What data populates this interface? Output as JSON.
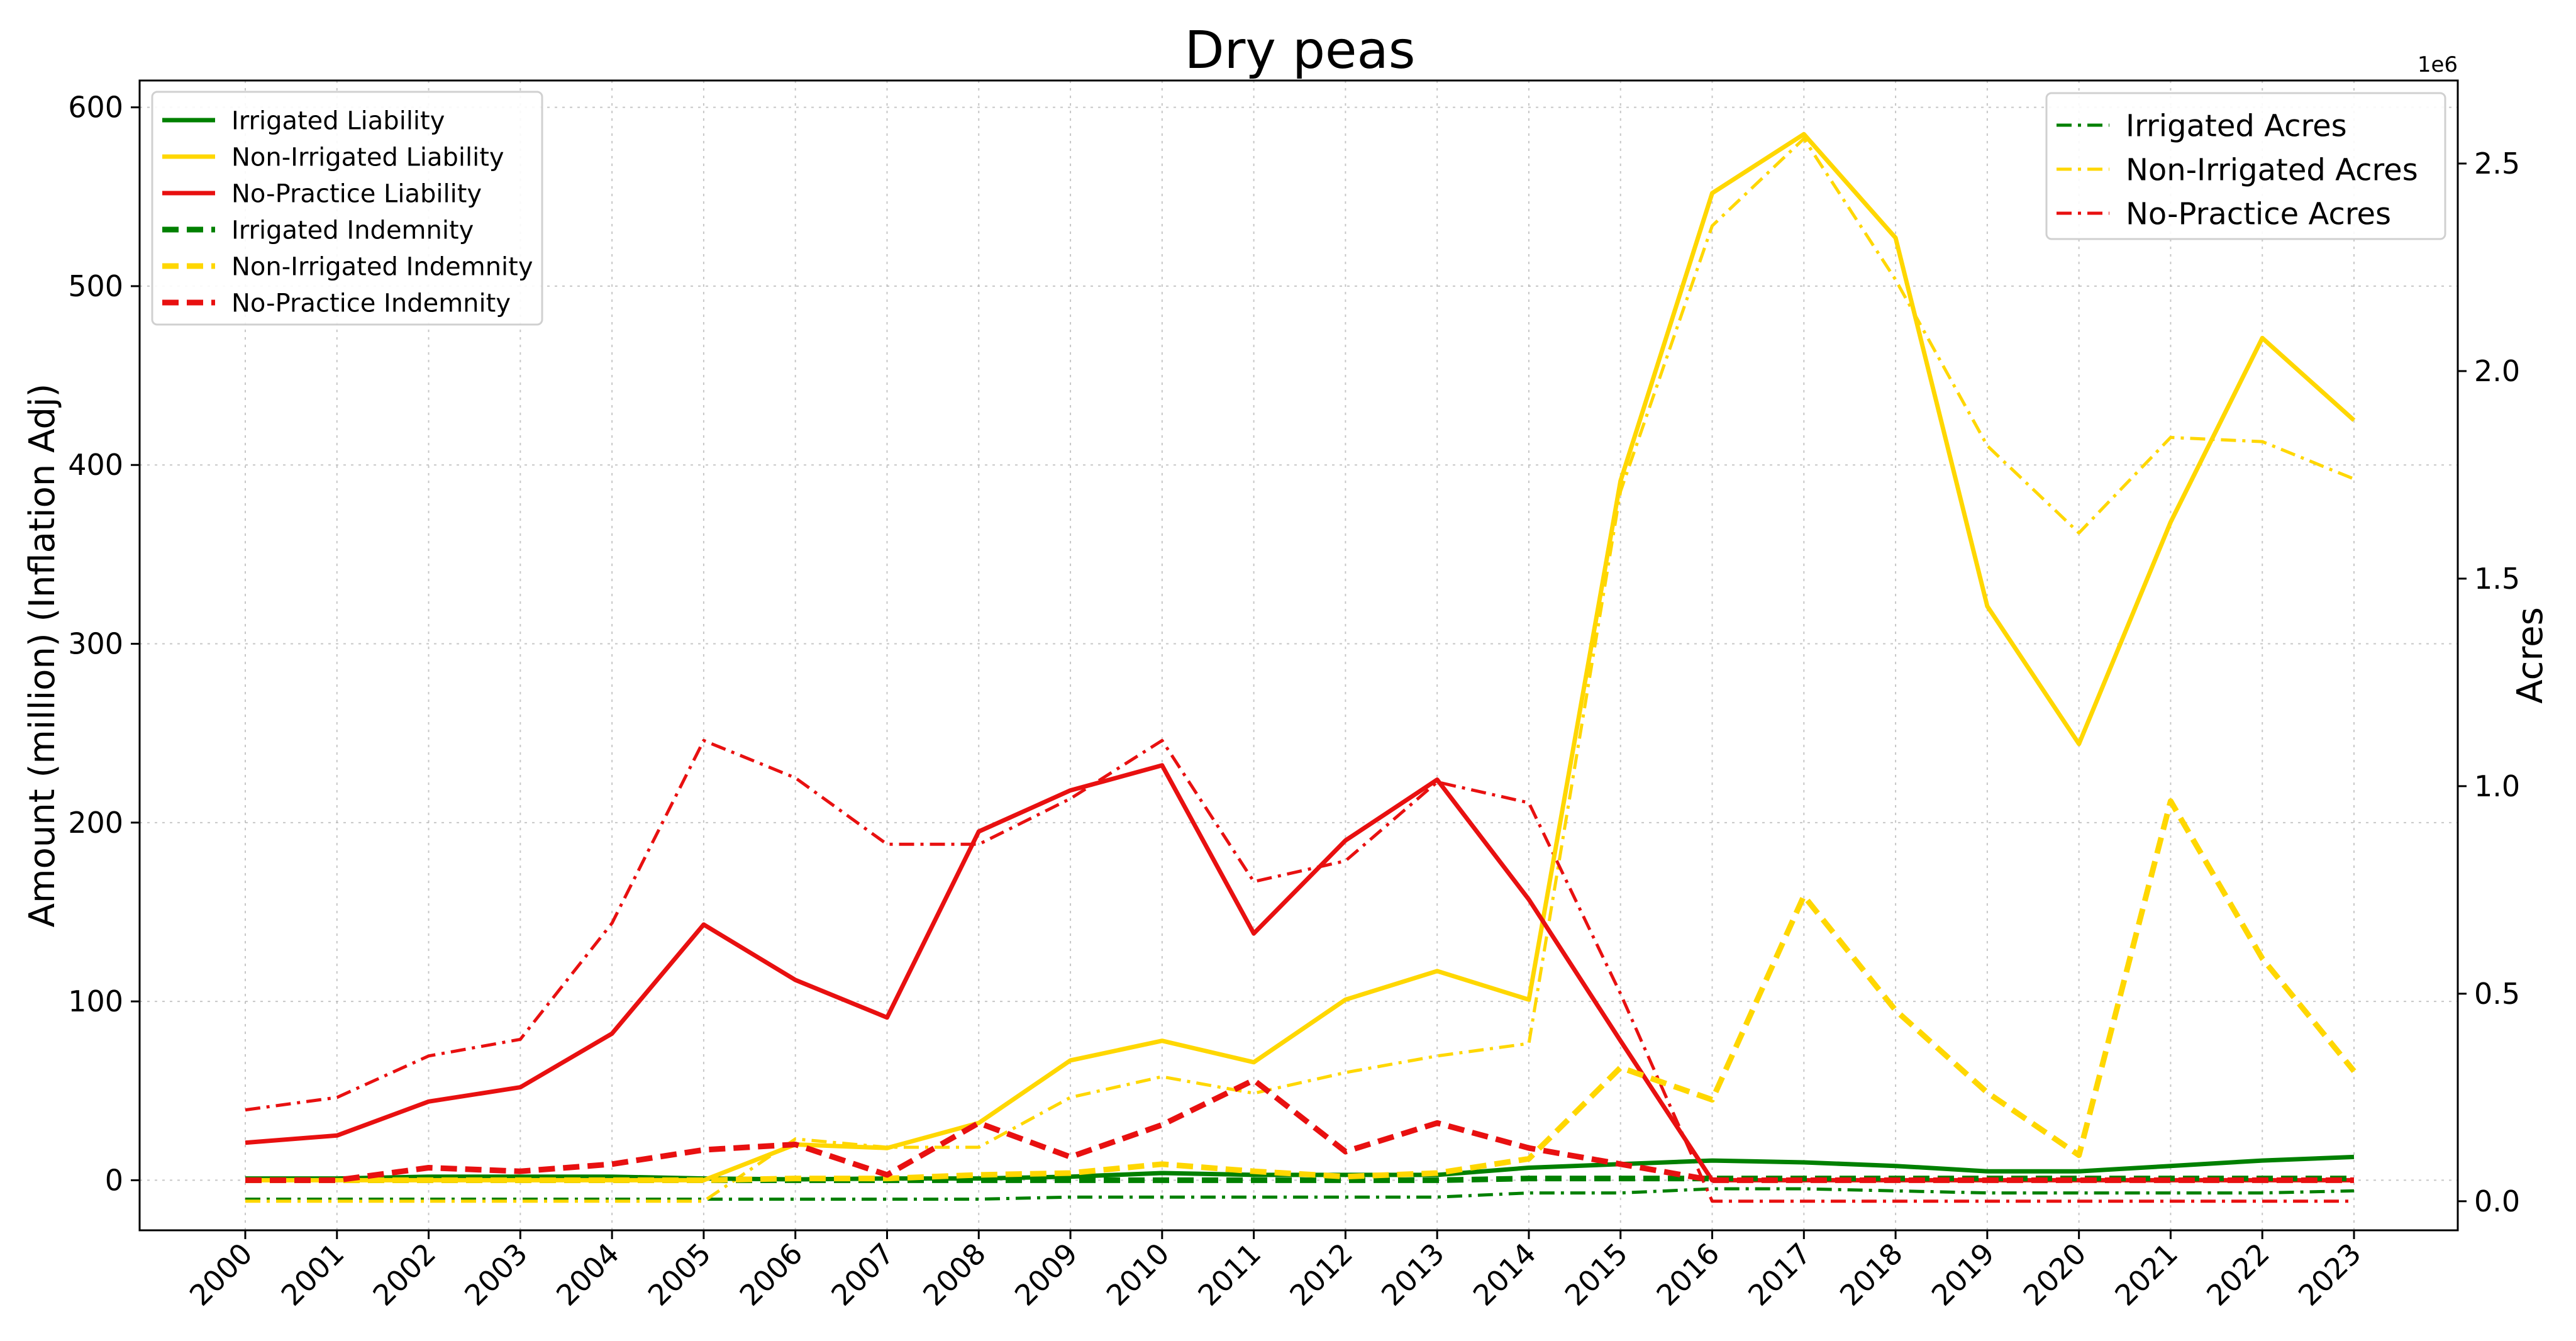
{
  "chart_data": {
    "type": "line",
    "title": "Dry peas",
    "xlabel": "",
    "ylabel_left": "Amount (million) (Inflation Adj)",
    "ylabel_right": "Acres",
    "right_axis_offset_label": "1e6",
    "ylim_left": [
      -28,
      615
    ],
    "ylim_right": [
      -0.07,
      2.7
    ],
    "grid": true,
    "x": [
      "2000",
      "2001",
      "2002",
      "2003",
      "2004",
      "2005",
      "2006",
      "2007",
      "2008",
      "2009",
      "2010",
      "2011",
      "2012",
      "2013",
      "2014",
      "2015",
      "2016",
      "2017",
      "2018",
      "2019",
      "2020",
      "2021",
      "2022",
      "2023"
    ],
    "y_ticks_left": [
      0,
      100,
      200,
      300,
      400,
      500,
      600
    ],
    "y_ticks_right": [
      0.0,
      0.5,
      1.0,
      1.5,
      2.0,
      2.5
    ],
    "legend_left_position": "upper-left",
    "legend_right_position": "upper-right",
    "colors": {
      "irrigated": "#008000",
      "non_irrigated": "#FFD700",
      "no_practice": "#E81010"
    },
    "series_left": [
      {
        "name": "Irrigated Liability",
        "color": "#008000",
        "style": "solid",
        "values": [
          1,
          1,
          2,
          2,
          2,
          1,
          0.5,
          1,
          1,
          2,
          4,
          3,
          3,
          3,
          7,
          9,
          11,
          10,
          8,
          5,
          5,
          8,
          11,
          13
        ]
      },
      {
        "name": "Non-Irrigated Liability",
        "color": "#FFD700",
        "style": "solid",
        "values": [
          0,
          0,
          0,
          0,
          0,
          0,
          20,
          18,
          32,
          67,
          78,
          66,
          101,
          117,
          101,
          391,
          552,
          585,
          527,
          321,
          244,
          368,
          471,
          425
        ]
      },
      {
        "name": "No-Practice Liability",
        "color": "#E81010",
        "style": "solid",
        "values": [
          21,
          25,
          44,
          52,
          82,
          143,
          112,
          91,
          195,
          218,
          232,
          138,
          190,
          224,
          157,
          78,
          0,
          0,
          0,
          0,
          0,
          0,
          0,
          0
        ]
      },
      {
        "name": "Irrigated Indemnity",
        "color": "#008000",
        "style": "dashed",
        "values": [
          0,
          0,
          0,
          0,
          0,
          0,
          0,
          0,
          0,
          0,
          0,
          0,
          0,
          0,
          1,
          1,
          1,
          1,
          1,
          1,
          1,
          1,
          1,
          1
        ]
      },
      {
        "name": "Non-Irrigated Indemnity",
        "color": "#FFD700",
        "style": "dashed",
        "values": [
          0,
          0,
          0,
          0,
          0,
          0,
          1,
          1,
          3,
          4,
          9,
          5,
          2,
          4,
          12,
          63,
          45,
          159,
          95,
          49,
          14,
          212,
          124,
          61
        ]
      },
      {
        "name": "No-Practice Indemnity",
        "color": "#E81010",
        "style": "dashed",
        "values": [
          0,
          0,
          7,
          5,
          9,
          17,
          20,
          3,
          32,
          13,
          31,
          56,
          16,
          32,
          18,
          9,
          0,
          0,
          0,
          0,
          0,
          0,
          0,
          0
        ]
      }
    ],
    "series_right": [
      {
        "name": "Irrigated Acres",
        "color": "#008000",
        "style": "dashdot",
        "values": [
          0.005,
          0.005,
          0.005,
          0.005,
          0.005,
          0.005,
          0.005,
          0.005,
          0.005,
          0.01,
          0.01,
          0.01,
          0.01,
          0.01,
          0.02,
          0.02,
          0.03,
          0.03,
          0.025,
          0.02,
          0.02,
          0.02,
          0.02,
          0.025
        ]
      },
      {
        "name": "Non-Irrigated Acres",
        "color": "#FFD700",
        "style": "dashdot",
        "values": [
          0.0,
          0.0,
          0.0,
          0.0,
          0.0,
          0.0,
          0.15,
          0.13,
          0.13,
          0.25,
          0.3,
          0.26,
          0.31,
          0.35,
          0.38,
          1.71,
          2.35,
          2.56,
          2.22,
          1.82,
          1.61,
          1.84,
          1.83,
          1.74
        ]
      },
      {
        "name": "No-Practice Acres",
        "color": "#E81010",
        "style": "dashdot",
        "values": [
          0.22,
          0.25,
          0.35,
          0.39,
          0.67,
          1.11,
          1.02,
          0.86,
          0.86,
          0.97,
          1.11,
          0.77,
          0.82,
          1.01,
          0.96,
          0.5,
          0.0,
          0.0,
          0.0,
          0.0,
          0.0,
          0.0,
          0.0,
          0.0
        ]
      }
    ]
  }
}
